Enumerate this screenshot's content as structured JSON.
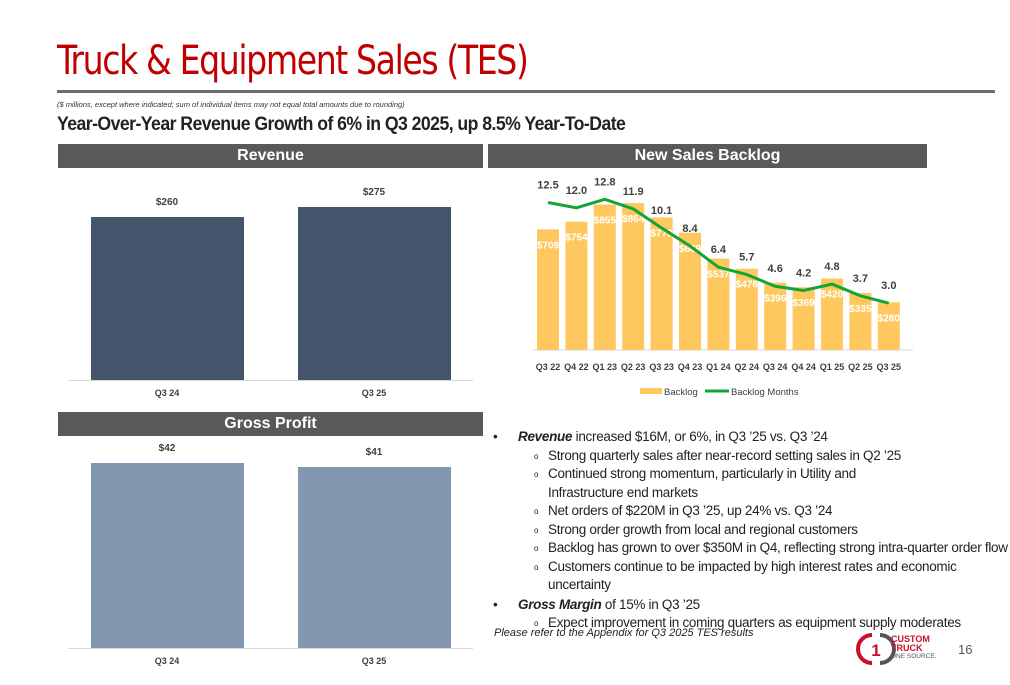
{
  "title": "Truck & Equipment Sales (TES)",
  "note": "($ millions, except where indicated; sum of individual items may not equal total amounts due to rounding)",
  "headline": "Year-Over-Year Revenue Growth of 6% in Q3 2025, up 8.5% Year-To-Date",
  "colors": {
    "title": "#c00000",
    "revenue_bar": "#44546a",
    "gross_profit_bar": "#8497b0",
    "backlog_bar": "#ffc85f",
    "backlog_months_line": "#13a538",
    "header": "#595959"
  },
  "chart_data": [
    {
      "type": "bar",
      "title": "Revenue",
      "categories": [
        "Q3 24",
        "Q3 25"
      ],
      "values": [
        260,
        275
      ],
      "labels": [
        "$260",
        "$275"
      ]
    },
    {
      "type": "bar",
      "title": "Gross Profit",
      "categories": [
        "Q3 24",
        "Q3 25"
      ],
      "values": [
        42,
        41
      ],
      "labels": [
        "$42",
        "$41"
      ]
    },
    {
      "type": "bar+line",
      "title": "New Sales Backlog",
      "categories": [
        "Q3 22",
        "Q4 22",
        "Q1 23",
        "Q2 23",
        "Q3 23",
        "Q4 23",
        "Q1 24",
        "Q2 24",
        "Q3 24",
        "Q4 24",
        "Q1 25",
        "Q2 25",
        "Q3 25"
      ],
      "series": [
        {
          "name": "Backlog",
          "type": "bar",
          "values": [
            709,
            754,
            855,
            864,
            779,
            689,
            537,
            478,
            396,
            369,
            420,
            335,
            280
          ]
        },
        {
          "name": "Backlog Months",
          "type": "line",
          "values": [
            12.5,
            12.0,
            12.8,
            11.9,
            10.1,
            8.4,
            6.4,
            5.7,
            4.6,
            4.2,
            4.8,
            3.7,
            3.0
          ]
        }
      ],
      "legend": "bottom"
    }
  ],
  "bullets": [
    {
      "bold": "Revenue",
      "text": " increased $16M, or 6%, in Q3 ’25 vs. Q3 ’24",
      "subs": [
        "Strong quarterly sales after near-record setting sales in Q2 ’25",
        "Continued strong momentum, particularly in Utility and Infrastructure end markets",
        "Net orders of $220M in Q3 ’25, up 24% vs. Q3 ’24",
        "Strong order growth from local and regional customers",
        "Backlog has grown to over $350M in Q4, reflecting strong intra-quarter order flow",
        "Customers continue to be impacted by high interest rates and economic uncertainty"
      ]
    },
    {
      "bold": "Gross Margin",
      "text": " of 15% in Q3 ’25",
      "subs": [
        "Expect improvement in coming quarters as equipment supply moderates"
      ]
    }
  ],
  "refer": "Please refer to the Appendix for Q3 2025 TES results",
  "logo": {
    "line1": "CUSTOM",
    "line2": "TRUCK",
    "line3": "ONE SOURCE."
  },
  "page_number": "16"
}
